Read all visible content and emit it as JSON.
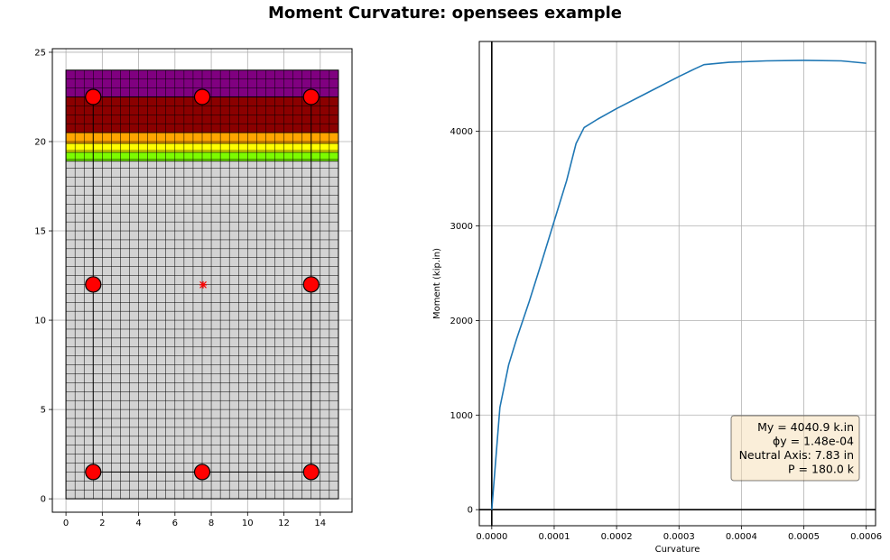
{
  "figure": {
    "title": "Moment Curvature: opensees example"
  },
  "chart_data": [
    {
      "type": "section",
      "xlim": [
        -0.75,
        15.75
      ],
      "ylim": [
        -0.75,
        25.2
      ],
      "xticks": [
        0,
        2,
        4,
        6,
        8,
        10,
        12,
        14
      ],
      "yticks": [
        0,
        5,
        10,
        15,
        20,
        25
      ],
      "grid": true,
      "section_width": 15,
      "section_height": 24,
      "fiber_size": 0.5,
      "core": {
        "x": [
          1.5,
          13.5
        ],
        "y": [
          1.5,
          22.5
        ]
      },
      "bands": [
        {
          "y": [
            22.5,
            24
          ],
          "color": "#800080"
        },
        {
          "y": [
            20.5,
            22.5
          ],
          "color": "#8b0000"
        },
        {
          "y": [
            19.9,
            20.5
          ],
          "color": "#ffa500"
        },
        {
          "y": [
            19.4,
            19.9
          ],
          "color": "#ffff00"
        },
        {
          "y": [
            18.9,
            19.4
          ],
          "color": "#7cfc00"
        },
        {
          "y": [
            0,
            18.9
          ],
          "color": "#d3d3d3"
        }
      ],
      "rebars": [
        {
          "x": 1.5,
          "y": 22.5
        },
        {
          "x": 7.5,
          "y": 22.5
        },
        {
          "x": 13.5,
          "y": 22.5
        },
        {
          "x": 1.5,
          "y": 12.0
        },
        {
          "x": 13.5,
          "y": 12.0
        },
        {
          "x": 1.5,
          "y": 1.5
        },
        {
          "x": 7.5,
          "y": 1.5
        },
        {
          "x": 13.5,
          "y": 1.5
        }
      ],
      "centroid": {
        "x": 7.55,
        "y": 11.98
      },
      "rebar_color": "#ff0000"
    },
    {
      "type": "line",
      "xlabel": "Curvature",
      "ylabel": "Moment (kip.in)",
      "xlim": [
        -2e-05,
        0.000615
      ],
      "ylim": [
        -170,
        4950
      ],
      "xticks": [
        0,
        0.0001,
        0.0002,
        0.0003,
        0.0004,
        0.0005,
        0.0006
      ],
      "xtick_labels": [
        "0.0000",
        "0.0001",
        "0.0002",
        "0.0003",
        "0.0004",
        "0.0005",
        "0.0006"
      ],
      "yticks": [
        0,
        1000,
        2000,
        3000,
        4000
      ],
      "grid": true,
      "series": [
        {
          "color": "#1f77b4",
          "x": [
            0,
            1.3e-05,
            2.7e-05,
            4e-05,
            6e-05,
            8e-05,
            0.0001,
            0.00012,
            0.000135,
            0.000148,
            0.00017,
            0.0002,
            0.00025,
            0.0003,
            0.000325,
            0.00034,
            0.00038,
            0.00044,
            0.0005,
            0.00056,
            0.0006
          ],
          "y": [
            0,
            1080,
            1530,
            1810,
            2200,
            2620,
            3050,
            3480,
            3870,
            4040,
            4130,
            4240,
            4410,
            4580,
            4660,
            4705,
            4730,
            4745,
            4750,
            4745,
            4720
          ]
        }
      ],
      "annotation": {
        "lines": [
          "My = 4040.9 k.in",
          "ϕy = 1.48e-04",
          "Neutral Axis: 7.83 in",
          "P = 180.0 k"
        ],
        "placement": "lower-right",
        "facecolor": "#f5deb3"
      }
    }
  ]
}
